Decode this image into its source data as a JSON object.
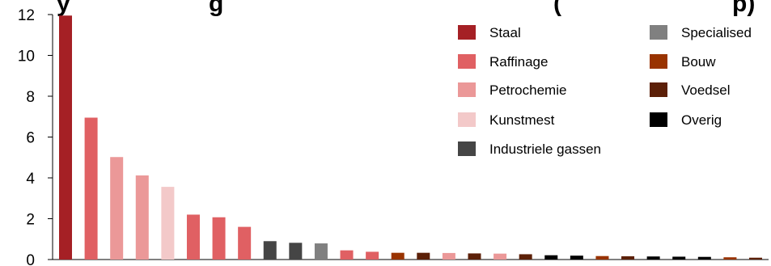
{
  "title_fragments": [
    "y",
    "g",
    "(",
    "p)"
  ],
  "colors": {
    "Staal": "#a52025",
    "Raffinage": "#e06063",
    "Petrochemie": "#eb9898",
    "Kunstmest": "#f3c9c9",
    "Industriele gassen": "#454545",
    "Specialised": "#808080",
    "Bouw": "#993300",
    "Voedsel": "#5c2008",
    "Overig": "#000000"
  },
  "chart_data": {
    "type": "bar",
    "title": "",
    "xlabel": "",
    "ylabel": "",
    "ylim": [
      0,
      12
    ],
    "yticks": [
      0,
      2,
      4,
      6,
      8,
      10,
      12
    ],
    "grid": false,
    "legend_position": "top-right",
    "legend": [
      "Staal",
      "Raffinage",
      "Petrochemie",
      "Kunstmest",
      "Industriele gassen",
      "Specialised",
      "Bouw",
      "Voedsel",
      "Overig"
    ],
    "bars": [
      {
        "series": "Staal",
        "value": 11.95
      },
      {
        "series": "Raffinage",
        "value": 6.95
      },
      {
        "series": "Petrochemie",
        "value": 5.02
      },
      {
        "series": "Petrochemie",
        "value": 4.12
      },
      {
        "series": "Kunstmest",
        "value": 3.56
      },
      {
        "series": "Raffinage",
        "value": 2.2
      },
      {
        "series": "Raffinage",
        "value": 2.07
      },
      {
        "series": "Raffinage",
        "value": 1.6
      },
      {
        "series": "Industriele gassen",
        "value": 0.9
      },
      {
        "series": "Industriele gassen",
        "value": 0.82
      },
      {
        "series": "Specialised",
        "value": 0.79
      },
      {
        "series": "Raffinage",
        "value": 0.45
      },
      {
        "series": "Raffinage",
        "value": 0.38
      },
      {
        "series": "Bouw",
        "value": 0.33
      },
      {
        "series": "Voedsel",
        "value": 0.33
      },
      {
        "series": "Petrochemie",
        "value": 0.32
      },
      {
        "series": "Voedsel",
        "value": 0.3
      },
      {
        "series": "Petrochemie",
        "value": 0.29
      },
      {
        "series": "Voedsel",
        "value": 0.26
      },
      {
        "series": "Overig",
        "value": 0.21
      },
      {
        "series": "Overig",
        "value": 0.19
      },
      {
        "series": "Bouw",
        "value": 0.17
      },
      {
        "series": "Voedsel",
        "value": 0.16
      },
      {
        "series": "Overig",
        "value": 0.15
      },
      {
        "series": "Overig",
        "value": 0.14
      },
      {
        "series": "Overig",
        "value": 0.13
      },
      {
        "series": "Bouw",
        "value": 0.11
      },
      {
        "series": "Voedsel",
        "value": 0.09
      }
    ]
  }
}
